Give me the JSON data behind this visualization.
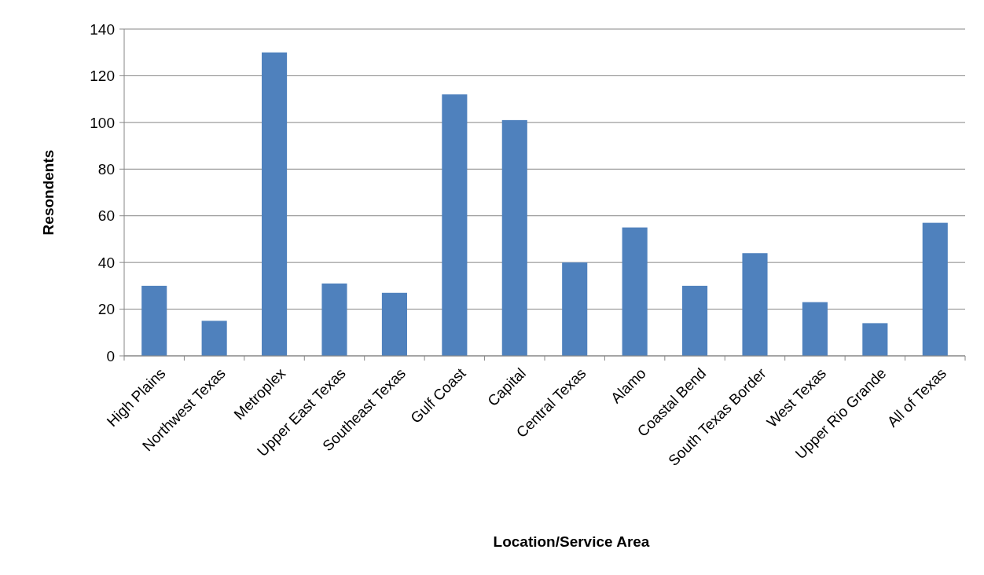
{
  "chart_data": {
    "type": "bar",
    "categories": [
      "High Plains",
      "Northwest Texas",
      "Metroplex",
      "Upper East Texas",
      "Southeast Texas",
      "Gulf Coast",
      "Capital",
      "Central Texas",
      "Alamo",
      "Coastal Bend",
      "South Texas Border",
      "West Texas",
      "Upper Rio Grande",
      "All of Texas"
    ],
    "values": [
      30,
      15,
      130,
      31,
      27,
      112,
      101,
      40,
      55,
      30,
      44,
      23,
      14,
      57
    ],
    "color": "#4f81bd",
    "ylim": [
      0,
      140
    ],
    "yticks": [
      0,
      20,
      40,
      60,
      80,
      100,
      120,
      140
    ],
    "grid": "y",
    "xlabel": "Location/Service Area",
    "ylabel": "Resondents"
  }
}
